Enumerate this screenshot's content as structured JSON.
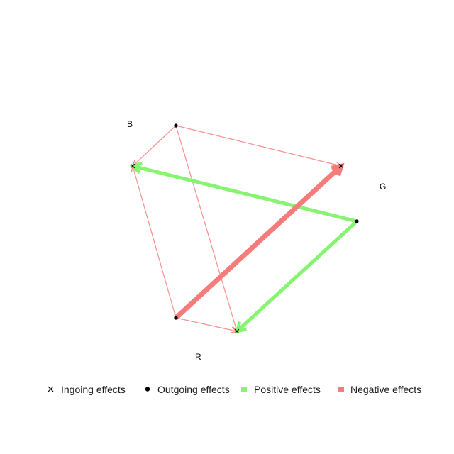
{
  "nodes": [
    {
      "id": "B",
      "label": "B"
    },
    {
      "id": "G",
      "label": "G"
    },
    {
      "id": "R",
      "label": "R"
    }
  ],
  "edges": [
    {
      "from": "B",
      "to": "G",
      "effect": "negative",
      "strength": "weak"
    },
    {
      "from": "B",
      "to": "R",
      "effect": "negative",
      "strength": "weak"
    },
    {
      "from": "B",
      "to": "B",
      "effect": "negative",
      "strength": "weak"
    },
    {
      "from": "R",
      "to": "B",
      "effect": "negative",
      "strength": "weak"
    },
    {
      "from": "R",
      "to": "R",
      "effect": "negative",
      "strength": "weak"
    },
    {
      "from": "R",
      "to": "G",
      "effect": "negative",
      "strength": "strong"
    },
    {
      "from": "G",
      "to": "B",
      "effect": "positive",
      "strength": "medium"
    },
    {
      "from": "G",
      "to": "R",
      "effect": "positive",
      "strength": "medium"
    }
  ],
  "legend": {
    "ingoing": "Ingoing effects",
    "outgoing": "Outgoing effects",
    "positive": "Positive effects",
    "negative": "Negative effects"
  },
  "colors": {
    "positive": "#85f56f",
    "negative": "#f67b7b",
    "marker": "#000000"
  }
}
